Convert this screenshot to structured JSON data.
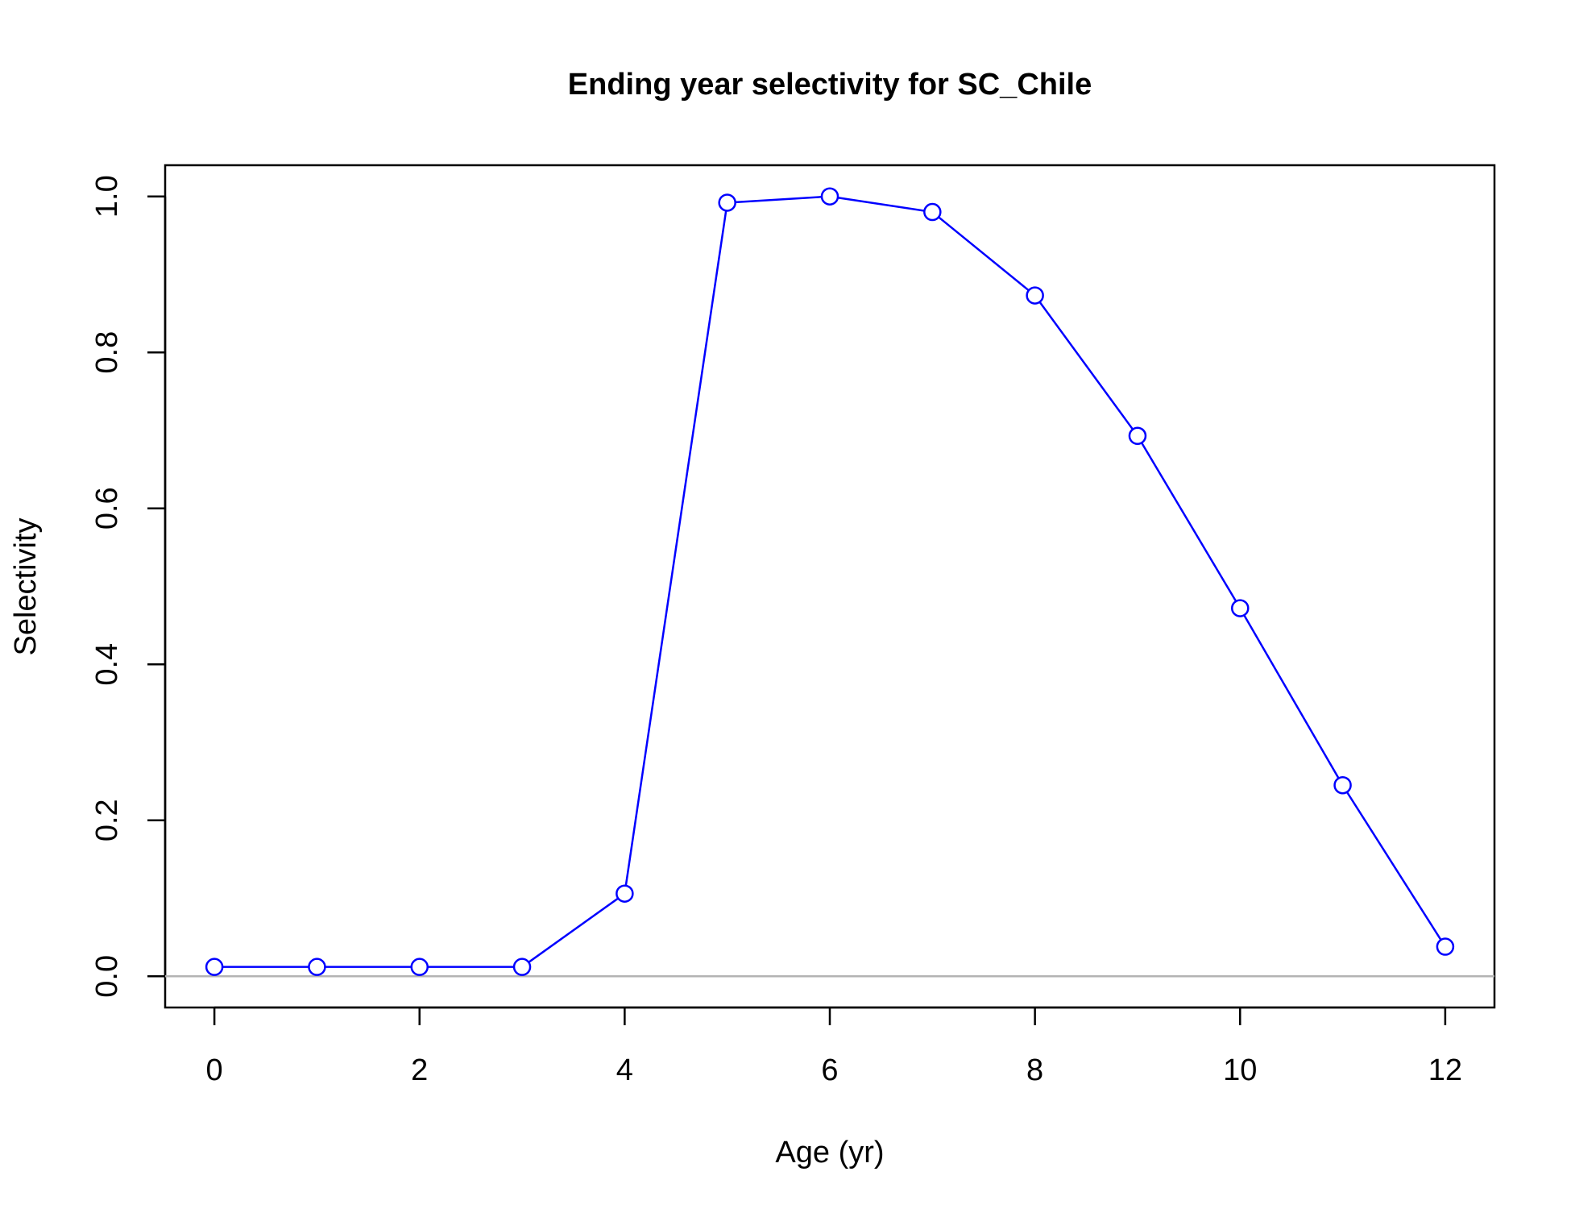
{
  "chart_data": {
    "type": "line",
    "title": "Ending year selectivity for SC_Chile",
    "xlabel": "Age (yr)",
    "ylabel": "Selectivity",
    "xlim": [
      -0.48,
      12.48
    ],
    "ylim": [
      -0.04,
      1.04
    ],
    "xticks": [
      0,
      2,
      4,
      6,
      8,
      10,
      12
    ],
    "yticks": [
      0.0,
      0.2,
      0.4,
      0.6,
      0.8,
      1.0
    ],
    "xtick_labels": [
      "0",
      "2",
      "4",
      "6",
      "8",
      "10",
      "12"
    ],
    "ytick_labels": [
      "0.0",
      "0.2",
      "0.4",
      "0.6",
      "0.8",
      "1.0"
    ],
    "reference_line": {
      "y": 0,
      "color": "#b3b3b3"
    },
    "series": [
      {
        "color": "#0000ff",
        "marker": "open-circle",
        "x": [
          0,
          1,
          2,
          3,
          4,
          5,
          6,
          7,
          8,
          9,
          10,
          11,
          12
        ],
        "y": [
          0.012,
          0.012,
          0.012,
          0.012,
          0.106,
          0.992,
          1.0,
          0.98,
          0.873,
          0.693,
          0.472,
          0.245,
          0.038
        ]
      }
    ],
    "grid": false,
    "legend": "none"
  }
}
